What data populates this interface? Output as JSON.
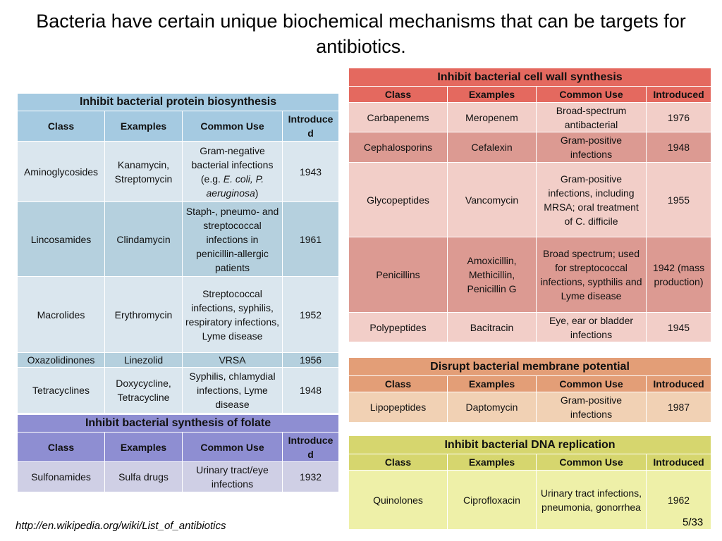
{
  "title": "Bacteria have certain unique biochemical mechanisms that can be targets for antibiotics.",
  "source": "http://en.wikipedia.org/wiki/List_of_antibiotics",
  "page": "5/33",
  "headers": {
    "class": "Class",
    "examples": "Examples",
    "use": "Common Use",
    "introduced": "Introduced",
    "introduced_wrapped": "Introduce d"
  },
  "protein": {
    "title": "Inhibit bacterial protein biosynthesis",
    "rows": [
      {
        "class": "Aminoglycosides",
        "examples": "Kanamycin, Streptomycin",
        "use_prefix": "Gram-negative bacterial infections (e.g. ",
        "use_italic": "E. coli, P. aeruginosa",
        "use_suffix": ")",
        "year": "1943"
      },
      {
        "class": "Lincosamides",
        "examples": "Clindamycin",
        "use": "Staph-, pneumo- and streptococcal infections in penicillin-allergic patients",
        "year": "1961"
      },
      {
        "class": "Macrolides",
        "examples": "Erythromycin",
        "use": "Streptococcal infections, syphilis, respiratory infections, Lyme disease",
        "year": "1952"
      },
      {
        "class": "Oxazolidinones",
        "examples": "Linezolid",
        "use": "VRSA",
        "year": "1956"
      },
      {
        "class": "Tetracyclines",
        "examples": "Doxycycline, Tetracycline",
        "use": "Syphilis, chlamydial infections, Lyme disease",
        "year": "1948"
      }
    ]
  },
  "folate": {
    "title": "Inhibit bacterial synthesis of folate",
    "rows": [
      {
        "class": "Sulfonamides",
        "examples": "Sulfa drugs",
        "use": "Urinary tract/eye infections",
        "year": "1932"
      }
    ]
  },
  "cellwall": {
    "title": "Inhibit bacterial cell wall synthesis",
    "rows": [
      {
        "class": "Carbapenems",
        "examples": "Meropenem",
        "use": "Broad-spectrum antibacterial",
        "year": "1976"
      },
      {
        "class": "Cephalosporins",
        "examples": "Cefalexin",
        "use": "Gram-positive infections",
        "year": "1948"
      },
      {
        "class": "Glycopeptides",
        "examples": "Vancomycin",
        "use": "Gram-positive infections, including MRSA; oral treatment of C. difficile",
        "year": "1955"
      },
      {
        "class": "Penicillins",
        "examples": "Amoxicillin, Methicillin, Penicillin G",
        "use": "Broad spectrum; used for streptococcal infections, sypthilis and Lyme disease",
        "year": "1942 (mass production)"
      },
      {
        "class": "Polypeptides",
        "examples": "Bacitracin",
        "use": "Eye, ear or bladder infections",
        "year": "1945"
      }
    ]
  },
  "membrane": {
    "title": "Disrupt bacterial membrane potential",
    "rows": [
      {
        "class": "Lipopeptides",
        "examples": "Daptomycin",
        "use": "Gram-positive infections",
        "year": "1987"
      }
    ]
  },
  "dna": {
    "title": "Inhibit bacterial DNA replication",
    "rows": [
      {
        "class": "Quinolones",
        "examples": "Ciprofloxacin",
        "use": "Urinary tract infections, pneumonia, gonorrhea",
        "year": "1962"
      }
    ]
  }
}
